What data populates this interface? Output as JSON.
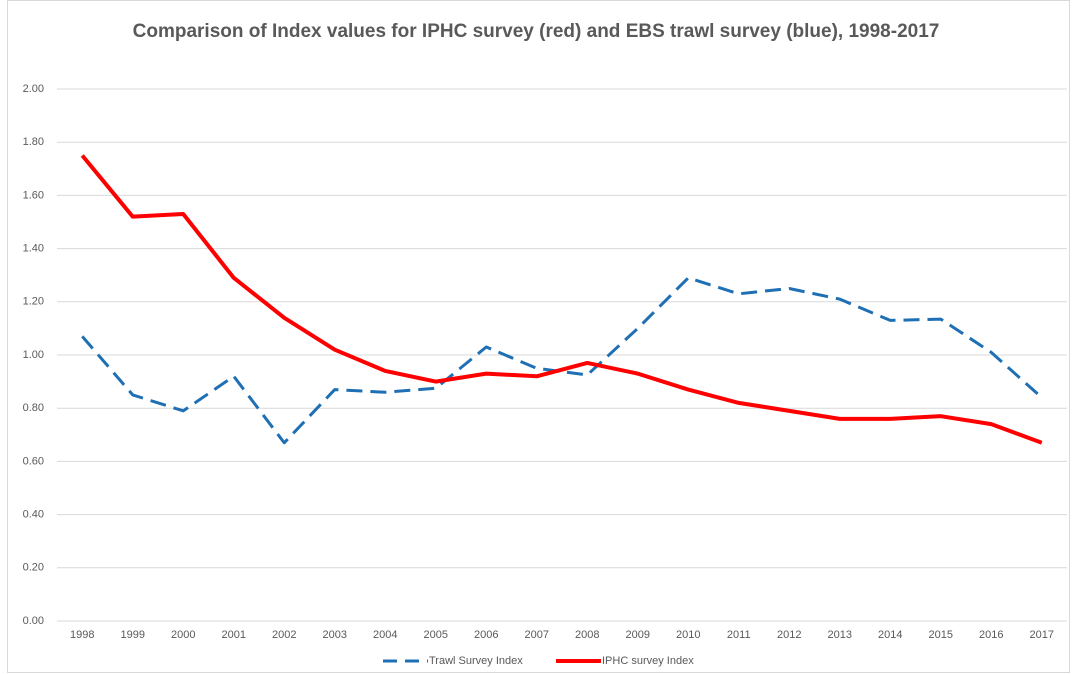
{
  "chart_data": {
    "type": "line",
    "title": "Comparison of Index values for IPHC survey (red) and EBS trawl survey (blue), 1998-2017",
    "categories": [
      "1998",
      "1999",
      "2000",
      "2001",
      "2002",
      "2003",
      "2004",
      "2005",
      "2006",
      "2007",
      "2008",
      "2009",
      "2010",
      "2011",
      "2012",
      "2013",
      "2014",
      "2015",
      "2016",
      "2017"
    ],
    "series": [
      {
        "name": "Trawl Survey Index",
        "color": "#1f6fb4",
        "dashed": true,
        "values": [
          1.07,
          0.85,
          0.79,
          0.92,
          0.67,
          0.87,
          0.86,
          0.875,
          1.03,
          0.95,
          0.925,
          1.1,
          1.29,
          1.23,
          1.25,
          1.21,
          1.13,
          1.135,
          1.01,
          0.84
        ]
      },
      {
        "name": "IPHC survey Index",
        "color": "#ff0000",
        "dashed": false,
        "values": [
          1.75,
          1.52,
          1.53,
          1.29,
          1.14,
          1.02,
          0.94,
          0.9,
          0.93,
          0.92,
          0.97,
          0.93,
          0.87,
          0.82,
          0.79,
          0.76,
          0.76,
          0.77,
          0.74,
          0.67
        ]
      }
    ],
    "ylim": [
      0,
      2
    ],
    "yticks": [
      {
        "value": 0,
        "label": "0.00"
      },
      {
        "value": 0.2,
        "label": "0.20"
      },
      {
        "value": 0.4,
        "label": "0.40"
      },
      {
        "value": 0.6,
        "label": "0.60"
      },
      {
        "value": 0.8,
        "label": "0.80"
      },
      {
        "value": 1,
        "label": "1.00"
      },
      {
        "value": 1.2,
        "label": "1.20"
      },
      {
        "value": 1.4,
        "label": "1.40"
      },
      {
        "value": 1.6,
        "label": "1.60"
      },
      {
        "value": 1.8,
        "label": "1.80"
      },
      {
        "value": 2,
        "label": "2.00"
      }
    ],
    "grid": true,
    "legend": "bottom"
  }
}
